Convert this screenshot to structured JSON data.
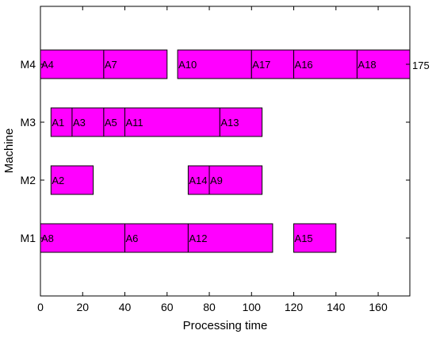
{
  "chart_data": {
    "type": "gantt",
    "xlabel": "Processing time",
    "ylabel": "Machine",
    "xlim": [
      0,
      175
    ],
    "xticks": [
      0,
      20,
      40,
      60,
      80,
      100,
      120,
      140,
      160
    ],
    "machines": [
      "M1",
      "M2",
      "M3",
      "M4"
    ],
    "bar_color": "#ff00ff",
    "annotation": "175",
    "tasks": [
      {
        "machine": "M4",
        "label": "A4",
        "start": 0,
        "end": 30
      },
      {
        "machine": "M4",
        "label": "A7",
        "start": 30,
        "end": 60
      },
      {
        "machine": "M4",
        "label": "A10",
        "start": 65,
        "end": 100
      },
      {
        "machine": "M4",
        "label": "A17",
        "start": 100,
        "end": 120
      },
      {
        "machine": "M4",
        "label": "A16",
        "start": 120,
        "end": 150
      },
      {
        "machine": "M4",
        "label": "A18",
        "start": 150,
        "end": 175
      },
      {
        "machine": "M3",
        "label": "A1",
        "start": 5,
        "end": 15
      },
      {
        "machine": "M3",
        "label": "A3",
        "start": 15,
        "end": 30
      },
      {
        "machine": "M3",
        "label": "A5",
        "start": 30,
        "end": 40
      },
      {
        "machine": "M3",
        "label": "A11",
        "start": 40,
        "end": 85
      },
      {
        "machine": "M3",
        "label": "A13",
        "start": 85,
        "end": 105
      },
      {
        "machine": "M2",
        "label": "A2",
        "start": 5,
        "end": 25
      },
      {
        "machine": "M2",
        "label": "A14",
        "start": 70,
        "end": 80
      },
      {
        "machine": "M2",
        "label": "A9",
        "start": 80,
        "end": 105
      },
      {
        "machine": "M1",
        "label": "A8",
        "start": 0,
        "end": 40
      },
      {
        "machine": "M1",
        "label": "A6",
        "start": 40,
        "end": 70
      },
      {
        "machine": "M1",
        "label": "A12",
        "start": 70,
        "end": 110
      },
      {
        "machine": "M1",
        "label": "A15",
        "start": 120,
        "end": 140
      }
    ]
  }
}
